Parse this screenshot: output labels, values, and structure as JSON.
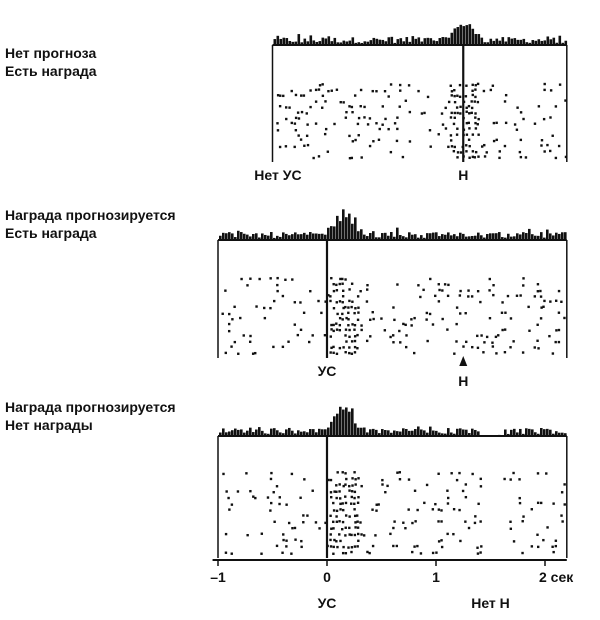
{
  "chart_data": {
    "type": "scatter",
    "description_units": "seconds",
    "x_axis": {
      "range": [
        -1,
        2.2
      ],
      "ticks": [
        {
          "value": -1,
          "label": "–1"
        },
        {
          "value": 0,
          "label": "0"
        },
        {
          "value": 1,
          "label": "1"
        },
        {
          "value": 2,
          "label": "2 сек"
        }
      ]
    },
    "panels": [
      {
        "condition_lines": [
          "Нет прогноза",
          "Есть награда"
        ],
        "x_range": [
          -0.5,
          2.2
        ],
        "event_markers": [
          {
            "name": "cs",
            "x": null,
            "label": "Нет УС",
            "label_x": -0.45
          },
          {
            "name": "reward",
            "x": 1.25,
            "label": "Н",
            "line": true
          }
        ],
        "burst_x": 1.25,
        "burst_kind": "excitation",
        "trial_rows": 14
      },
      {
        "condition_lines": [
          "Награда прогнозируется",
          "Есть награда"
        ],
        "x_range": [
          -1,
          2.2
        ],
        "event_markers": [
          {
            "name": "cs",
            "x": 0,
            "label": "УС",
            "line": true
          },
          {
            "name": "reward",
            "x": 1.25,
            "label": "Н",
            "arrow": true
          }
        ],
        "burst_x": 0.15,
        "burst_kind": "excitation",
        "trial_rows": 14
      },
      {
        "condition_lines": [
          "Награда прогнозируется",
          "Нет награды"
        ],
        "x_range": [
          -1,
          2.2
        ],
        "event_markers": [
          {
            "name": "cs",
            "x": 0,
            "label": "УС",
            "line": true
          },
          {
            "name": "no-reward",
            "x": 1.5,
            "label": "Нет Н"
          }
        ],
        "burst_x": 0.15,
        "burst_kind": "excitation",
        "pause_range": [
          1.4,
          1.6
        ],
        "trial_rows": 14
      }
    ]
  }
}
